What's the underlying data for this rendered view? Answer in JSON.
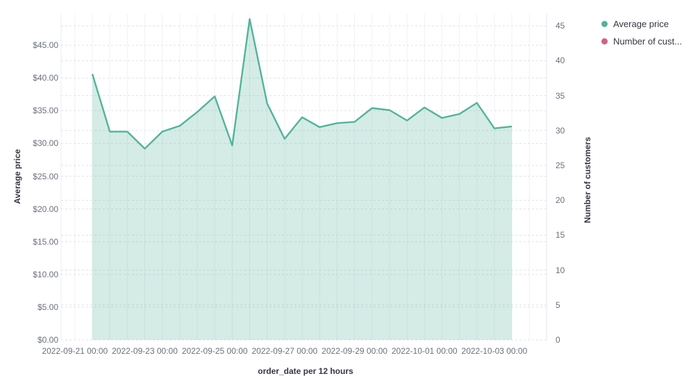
{
  "legend": {
    "position": "top-right",
    "items": [
      {
        "label": "Average price",
        "color": "#54b399",
        "icon": "circle"
      },
      {
        "label": "Number of cust...",
        "color": "#d36086",
        "icon": "circle"
      }
    ]
  },
  "axes": {
    "left": {
      "title": "Average price",
      "tick_labels": [
        "$0.00",
        "$5.00",
        "$10.00",
        "$15.00",
        "$20.00",
        "$25.00",
        "$30.00",
        "$35.00",
        "$40.00",
        "$45.00"
      ]
    },
    "right": {
      "title": "Number of customers",
      "tick_labels": [
        "0",
        "5",
        "10",
        "15",
        "20",
        "25",
        "30",
        "35",
        "40",
        "45"
      ]
    },
    "x": {
      "title": "order_date per 12 hours",
      "tick_labels": [
        "2022-09-21 00:00",
        "2022-09-23 00:00",
        "2022-09-25 00:00",
        "2022-09-27 00:00",
        "2022-09-29 00:00",
        "2022-10-01 00:00",
        "2022-10-03 00:00"
      ]
    }
  },
  "chart_data": {
    "type": "area",
    "title": "",
    "xlabel": "order_date per 12 hours",
    "x_interval": "12 hours",
    "ylabel_left": "Average price",
    "ylabel_right": "Number of customers",
    "y_left_ticks": [
      0,
      5,
      10,
      15,
      20,
      25,
      30,
      35,
      40,
      45
    ],
    "y_right_ticks": [
      0,
      5,
      10,
      15,
      20,
      25,
      30,
      35,
      40,
      45
    ],
    "y_left_range": [
      0,
      49.8
    ],
    "y_right_range": [
      0,
      46.7
    ],
    "grid": {
      "horizontal": "dashed, both axes",
      "vertical": "solid, every 12h bucket"
    },
    "legend_position": "top-right",
    "x": [
      "2022-09-21 12:00",
      "2022-09-22 00:00",
      "2022-09-22 12:00",
      "2022-09-23 00:00",
      "2022-09-23 12:00",
      "2022-09-24 00:00",
      "2022-09-24 12:00",
      "2022-09-25 00:00",
      "2022-09-25 12:00",
      "2022-09-26 00:00",
      "2022-09-26 12:00",
      "2022-09-27 00:00",
      "2022-09-27 12:00",
      "2022-09-28 00:00",
      "2022-09-28 12:00",
      "2022-09-29 00:00",
      "2022-09-29 12:00",
      "2022-09-30 00:00",
      "2022-09-30 12:00",
      "2022-10-01 00:00",
      "2022-10-01 12:00",
      "2022-10-02 00:00",
      "2022-10-02 12:00",
      "2022-10-03 00:00",
      "2022-10-03 12:00"
    ],
    "series": [
      {
        "name": "Average price",
        "axis": "left",
        "style": "area",
        "color": "#54b399",
        "fill_opacity": 0.25,
        "visible": true,
        "values": [
          40.6,
          31.8,
          31.8,
          29.2,
          31.8,
          32.7,
          34.8,
          37.2,
          29.7,
          49.0,
          36.1,
          30.7,
          34.0,
          32.5,
          33.1,
          33.3,
          35.4,
          35.1,
          33.5,
          35.5,
          33.9,
          34.5,
          36.2,
          32.3,
          32.6
        ]
      },
      {
        "name": "Number of customers",
        "axis": "right",
        "style": "line",
        "color": "#d36086",
        "visible": false,
        "values": []
      }
    ]
  },
  "colors": {
    "series_green": "#54b399",
    "series_pink": "#d36086",
    "tick_text": "#69707d",
    "title_text": "#343741",
    "grid_dashed": "#dde3ec",
    "grid_vertical": "#eef1f5",
    "plot_border": "#e9edf2",
    "background": "#ffffff"
  }
}
